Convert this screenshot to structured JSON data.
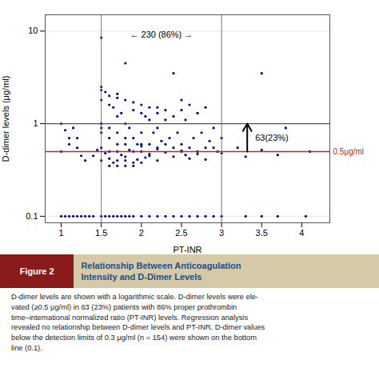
{
  "chart_data": {
    "type": "scatter",
    "figure_label": "Figure 2",
    "title": "Relationship Between Anticoagulation\nIntensity and D-Dimer Levels",
    "caption": "D-dimer levels are shown with a logarithmic scale. D-dimer levels were ele-\nvated (≥0.5 μg/ml) in 63 (23%) patients with 86% proper prothrombin\ntime–international normalized ratio (PT-INR) levels. Regression analysis\nrevealed no relationship between D-dimer levels and PT-INR. D-dimer values\nbelow the detection limits of 0.3 μg/ml (n = 154) were shown on the bottom\nline (0.1).",
    "xlabel": "PT-INR",
    "ylabel": "D-dimer levels (μg/ml)",
    "log": "y",
    "grid": "y",
    "xlim": [
      0.8,
      4.35
    ],
    "ylim": [
      0.085,
      15
    ],
    "xticks": [
      1,
      1.5,
      2,
      2.5,
      3,
      3.5,
      4
    ],
    "yticks": [
      0.1,
      1,
      10
    ],
    "color": "#00008B",
    "x": [
      1.0,
      1.05,
      1.1,
      1.15,
      1.2,
      1.25,
      1.5,
      1.5,
      1.5,
      1.5,
      1.5,
      1.5,
      1.5,
      1.5,
      1.5,
      1.55,
      1.6,
      1.6,
      1.6,
      1.6,
      1.6,
      1.6,
      1.65,
      1.7,
      1.7,
      1.7,
      1.7,
      1.7,
      1.7,
      1.7,
      1.75,
      1.8,
      1.8,
      1.8,
      1.8,
      1.8,
      1.8,
      1.8,
      1.85,
      1.9,
      1.9,
      1.9,
      1.9,
      1.9,
      1.95,
      2.0,
      2.0,
      2.0,
      2.0,
      2.0,
      2.0,
      2.05,
      2.1,
      2.1,
      2.1,
      2.1,
      2.15,
      2.2,
      2.2,
      2.2,
      2.2,
      2.2,
      2.25,
      2.3,
      2.3,
      2.3,
      2.35,
      2.4,
      2.4,
      2.4,
      2.45,
      2.5,
      2.5,
      2.5,
      2.5,
      2.55,
      2.6,
      2.6,
      2.65,
      2.7,
      2.7,
      2.75,
      2.8,
      2.8,
      2.85,
      2.9,
      2.95,
      3.0,
      3.2,
      3.5,
      3.8,
      1.0,
      1.05,
      1.1,
      1.15,
      1.2,
      1.25,
      1.3,
      1.35,
      1.4,
      1.5,
      1.55,
      1.6,
      1.65,
      1.7,
      1.75,
      1.8,
      1.85,
      1.9,
      2.0,
      2.1,
      2.2,
      2.3,
      2.4,
      2.5,
      2.6,
      2.7,
      2.8,
      2.9,
      3.0,
      3.3,
      3.5,
      3.7,
      4.05,
      1.0,
      1.1,
      1.2,
      1.3,
      1.4,
      1.45,
      1.5,
      1.55,
      1.6,
      1.65,
      1.7,
      1.75,
      1.8,
      1.85,
      1.9,
      1.95,
      2.0,
      2.05,
      2.1,
      2.2,
      2.3,
      2.4,
      2.5,
      2.55,
      2.6,
      2.7,
      2.8,
      2.9,
      3.0,
      3.3,
      3.5,
      3.7,
      4.1
    ],
    "values": [
      1.0,
      0.85,
      0.7,
      0.9,
      0.55,
      0.45,
      8.5,
      2.5,
      2.3,
      1.8,
      1.0,
      1.0,
      0.9,
      0.8,
      0.4,
      2.2,
      2.0,
      1.6,
      0.9,
      0.7,
      0.5,
      0.35,
      1.5,
      2.1,
      1.9,
      1.2,
      0.8,
      0.6,
      0.4,
      0.35,
      1.3,
      4.5,
      1.8,
      1.0,
      0.7,
      0.6,
      0.4,
      0.35,
      0.9,
      1.7,
      1.4,
      0.7,
      0.5,
      0.35,
      0.6,
      1.6,
      1.3,
      0.8,
      0.6,
      0.5,
      0.38,
      1.2,
      1.5,
      1.1,
      0.6,
      0.45,
      0.8,
      1.5,
      1.3,
      0.9,
      0.55,
      0.4,
      0.65,
      1.4,
      1.1,
      0.6,
      0.7,
      3.5,
      1.2,
      0.55,
      0.8,
      1.8,
      1.4,
      0.6,
      0.5,
      1.1,
      1.6,
      0.55,
      0.7,
      1.3,
      0.5,
      0.8,
      1.5,
      0.55,
      0.65,
      0.9,
      0.5,
      0.7,
      0.55,
      3.5,
      0.9,
      0.1,
      0.1,
      0.1,
      0.1,
      0.1,
      0.1,
      0.1,
      0.1,
      0.1,
      0.1,
      0.1,
      0.1,
      0.1,
      0.1,
      0.1,
      0.1,
      0.1,
      0.1,
      0.1,
      0.1,
      0.1,
      0.1,
      0.1,
      0.1,
      0.1,
      0.1,
      0.1,
      0.1,
      0.1,
      0.1,
      0.1,
      0.1,
      0.1,
      0.5,
      0.6,
      0.7,
      0.4,
      0.45,
      0.52,
      0.55,
      0.48,
      0.42,
      0.38,
      0.5,
      0.46,
      0.44,
      0.52,
      0.38,
      0.41,
      0.57,
      0.43,
      0.47,
      0.53,
      0.49,
      0.44,
      0.51,
      0.46,
      0.42,
      0.47,
      0.41,
      0.55,
      0.48,
      0.44,
      0.52,
      0.46,
      0.5
    ],
    "hlines": [
      {
        "y": 1.0,
        "color": "#555555"
      },
      {
        "y": 0.5,
        "color": "#CC2020",
        "label": "0.5μg/ml"
      }
    ],
    "vlines": [
      1.5,
      3.0
    ],
    "arrow": {
      "x": 3.32,
      "y_from": 0.5,
      "y_to": 1.0,
      "label": "63(23%)",
      "label_y": 0.7
    },
    "annotations": [
      {
        "text": "← 230 (86%) →",
        "x": 2.25,
        "y": 9.2
      }
    ]
  }
}
